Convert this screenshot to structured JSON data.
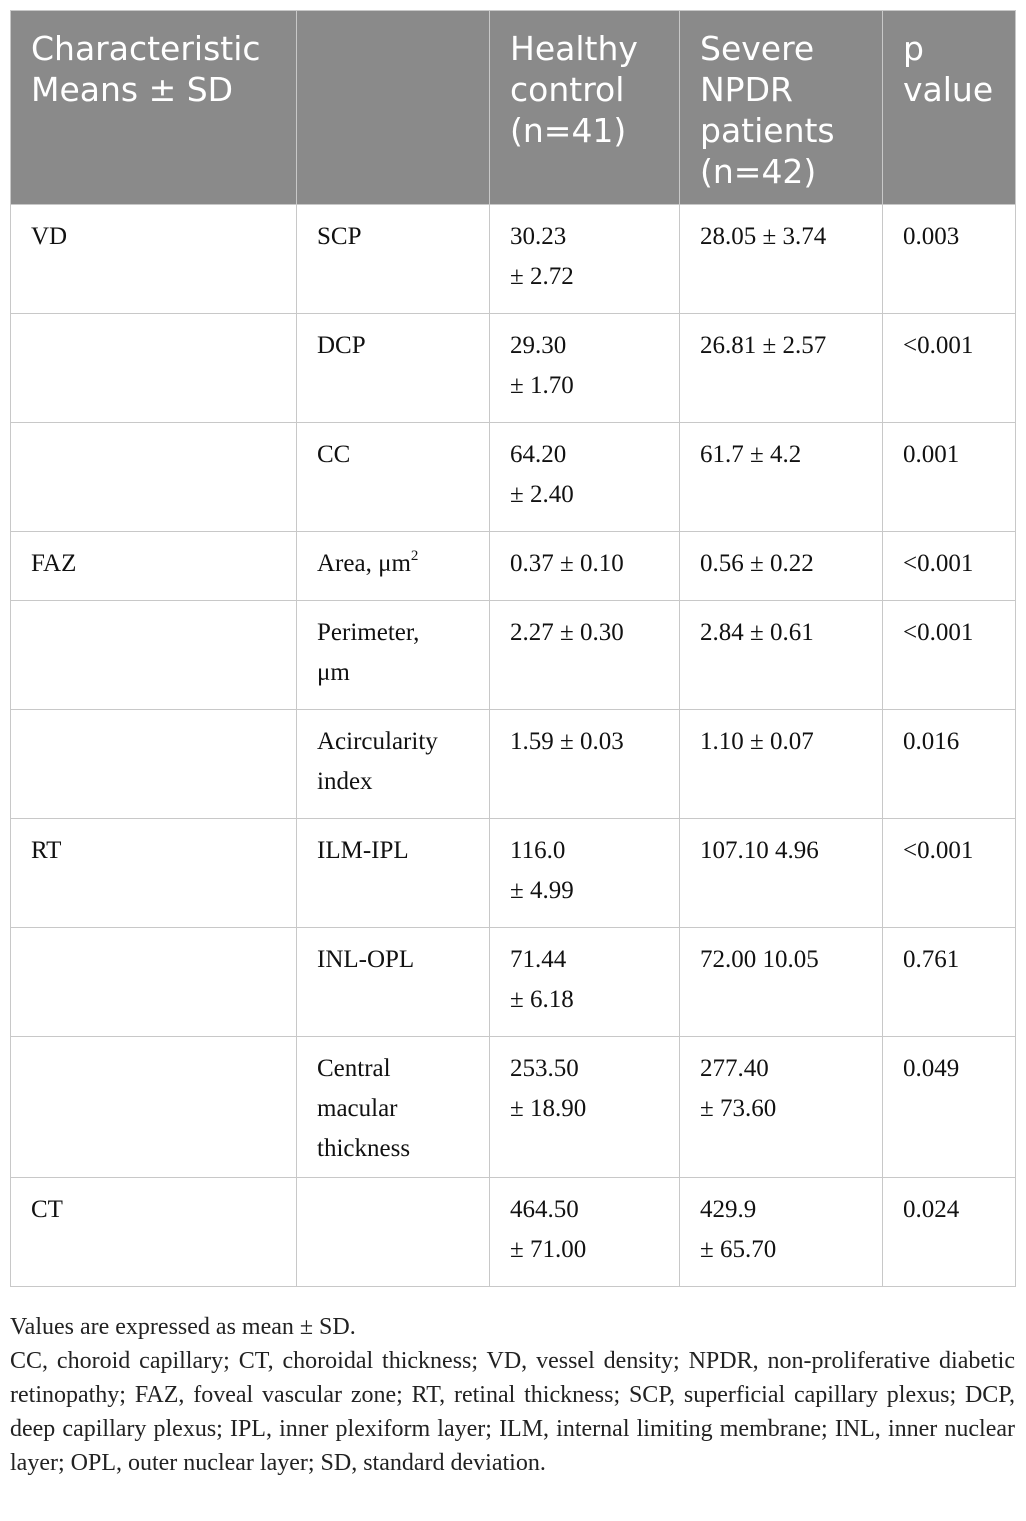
{
  "header": [
    [
      "Characteristic",
      "Means ± SD"
    ],
    [],
    [
      "Healthy",
      "control",
      "(n=41)"
    ],
    [
      "Severe",
      "NPDR",
      "patients",
      "(n=42)"
    ],
    [
      "p",
      "value"
    ]
  ],
  "rows": [
    {
      "group": "VD",
      "metric": [
        "SCP"
      ],
      "healthy": [
        "30.23",
        "± 2.72"
      ],
      "npdr": [
        "28.05 ± 3.74"
      ],
      "p": "0.003"
    },
    {
      "group": "",
      "metric": [
        "DCP"
      ],
      "healthy": [
        "29.30",
        "± 1.70"
      ],
      "npdr": [
        "26.81 ± 2.57"
      ],
      "p": "<0.001"
    },
    {
      "group": "",
      "metric": [
        "CC"
      ],
      "healthy": [
        "64.20",
        "± 2.40"
      ],
      "npdr": [
        "61.7 ± 4.2"
      ],
      "p": "0.001"
    },
    {
      "group": "FAZ",
      "metric": [
        "Area, μm"
      ],
      "metric_sup": "2",
      "healthy": [
        "0.37 ± 0.10"
      ],
      "npdr": [
        "0.56 ± 0.22"
      ],
      "p": "<0.001"
    },
    {
      "group": "",
      "metric": [
        "Perimeter,",
        "μm"
      ],
      "healthy": [
        "2.27 ± 0.30"
      ],
      "npdr": [
        "2.84 ± 0.61"
      ],
      "p": "<0.001"
    },
    {
      "group": "",
      "metric": [
        "Acircularity",
        "index"
      ],
      "healthy": [
        "1.59 ± 0.03"
      ],
      "npdr": [
        "1.10 ± 0.07"
      ],
      "p": "0.016"
    },
    {
      "group": "RT",
      "metric": [
        "ILM-IPL"
      ],
      "healthy": [
        "116.0",
        "± 4.99"
      ],
      "npdr": [
        "107.10 4.96"
      ],
      "p": "<0.001"
    },
    {
      "group": "",
      "metric": [
        "INL-OPL"
      ],
      "healthy": [
        "71.44",
        "± 6.18"
      ],
      "npdr": [
        "72.00 10.05"
      ],
      "p": "0.761"
    },
    {
      "group": "",
      "metric": [
        "Central",
        "macular",
        "thickness"
      ],
      "healthy": [
        "253.50",
        "± 18.90"
      ],
      "npdr": [
        "277.40",
        "± 73.60"
      ],
      "p": "0.049"
    },
    {
      "group": "CT",
      "metric": [],
      "healthy": [
        "464.50",
        "± 71.00"
      ],
      "npdr": [
        "429.9",
        "± 65.70"
      ],
      "p": "0.024"
    }
  ],
  "notes": [
    "Values are expressed as mean ± SD.",
    "CC, choroid capillary; CT, choroidal thickness; VD, vessel density; NPDR, non-proliferative diabetic retinopathy; FAZ, foveal vascular zone; RT, retinal thickness; SCP, superficial capillary plexus; DCP, deep capillary plexus; IPL, inner plexiform layer; ILM, internal limiting membrane; INL, inner nuclear layer; OPL, outer nuclear layer; SD, standard deviation."
  ]
}
